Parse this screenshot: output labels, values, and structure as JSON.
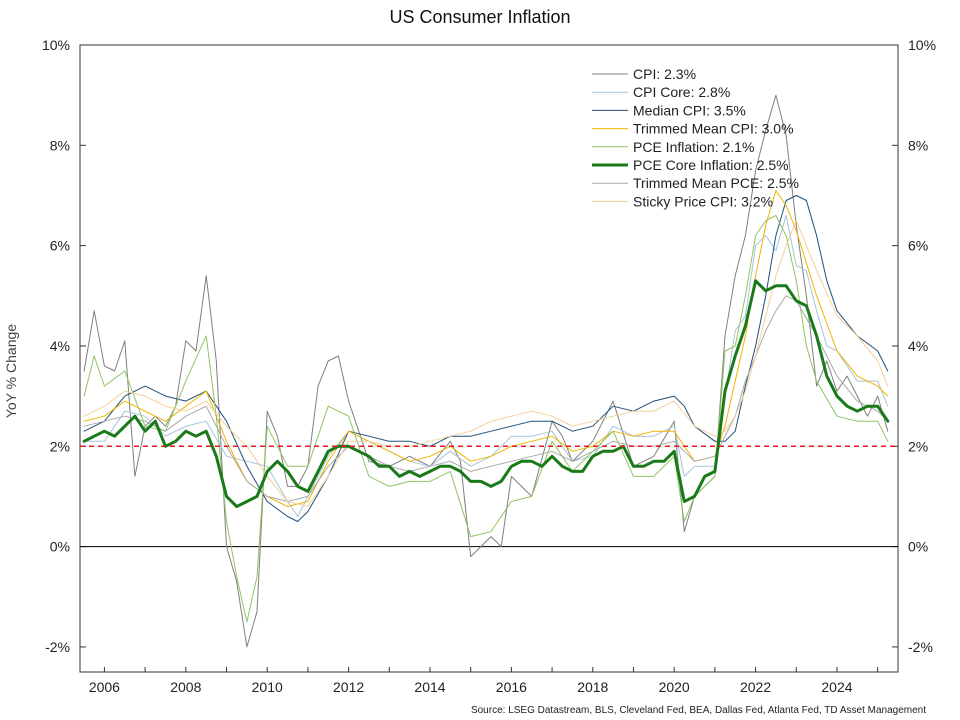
{
  "chart_data": {
    "type": "line",
    "title": "US Consumer Inflation",
    "ylabel": "YoY % Change",
    "xlabel": "",
    "source": "Source: LSEG Datastream, BLS, Cleveland Fed, BEA, Dallas Fed, Atlanta Fed, TD Asset Management",
    "ylim": [
      -2.5,
      10
    ],
    "xlim": [
      2005.4,
      2025.5
    ],
    "y_ticks": [
      -2,
      0,
      2,
      4,
      6,
      8,
      10
    ],
    "y_tick_labels": [
      "-2%",
      "0%",
      "2%",
      "4%",
      "6%",
      "8%",
      "10%"
    ],
    "x_ticks": [
      2006,
      2008,
      2010,
      2012,
      2014,
      2016,
      2018,
      2020,
      2022,
      2024
    ],
    "x_tick_labels": [
      "2006",
      "2008",
      "2010",
      "2012",
      "2014",
      "2016",
      "2018",
      "2020",
      "2022",
      "2024"
    ],
    "reference_line": {
      "value": 2,
      "style": "dashed",
      "color": "#e41a1c"
    },
    "zero_line": {
      "value": 0,
      "color": "#000000"
    },
    "grid": false,
    "legend_position": "top-right",
    "series": [
      {
        "name": "CPI: 2.3%",
        "color": "#7f7f7f",
        "width": 1,
        "x": [
          2005.5,
          2005.75,
          2006.0,
          2006.25,
          2006.5,
          2006.75,
          2007.0,
          2007.25,
          2007.5,
          2007.75,
          2008.0,
          2008.25,
          2008.5,
          2008.75,
          2009.0,
          2009.25,
          2009.5,
          2009.75,
          2010.0,
          2010.25,
          2010.5,
          2010.75,
          2011.0,
          2011.25,
          2011.5,
          2011.75,
          2012.0,
          2012.5,
          2013.0,
          2013.5,
          2014.0,
          2014.5,
          2014.75,
          2015.0,
          2015.25,
          2015.5,
          2015.75,
          2016.0,
          2016.5,
          2017.0,
          2017.25,
          2017.5,
          2018.0,
          2018.5,
          2019.0,
          2019.5,
          2020.0,
          2020.25,
          2020.5,
          2020.75,
          2021.0,
          2021.25,
          2021.5,
          2021.75,
          2022.0,
          2022.25,
          2022.5,
          2022.75,
          2023.0,
          2023.25,
          2023.5,
          2023.75,
          2024.0,
          2024.25,
          2024.5,
          2024.75,
          2025.0,
          2025.25
        ],
        "y": [
          3.5,
          4.7,
          3.6,
          3.5,
          4.1,
          1.4,
          2.4,
          2.6,
          2.4,
          2.8,
          4.1,
          3.9,
          5.4,
          3.7,
          0.0,
          -0.7,
          -2.0,
          -1.3,
          2.7,
          2.2,
          1.2,
          1.2,
          1.6,
          3.2,
          3.7,
          3.8,
          2.9,
          1.7,
          1.6,
          1.8,
          1.6,
          2.1,
          1.7,
          -0.2,
          0.0,
          0.2,
          0.0,
          1.4,
          1.0,
          2.5,
          2.2,
          1.7,
          2.1,
          2.9,
          1.6,
          1.8,
          2.5,
          0.3,
          1.0,
          1.2,
          1.4,
          4.2,
          5.4,
          6.2,
          7.5,
          8.3,
          9.0,
          8.2,
          6.4,
          5.0,
          3.2,
          3.7,
          3.1,
          3.4,
          3.0,
          2.6,
          3.0,
          2.3
        ]
      },
      {
        "name": "CPI Core: 2.8%",
        "color": "#a6c3d9",
        "width": 1,
        "x": [
          2005.5,
          2006.0,
          2006.5,
          2007.0,
          2007.5,
          2008.0,
          2008.5,
          2009.0,
          2009.5,
          2010.0,
          2010.5,
          2010.75,
          2011.0,
          2011.5,
          2012.0,
          2012.5,
          2013.0,
          2013.5,
          2014.0,
          2014.5,
          2015.0,
          2015.5,
          2016.0,
          2016.5,
          2017.0,
          2017.5,
          2018.0,
          2018.5,
          2019.0,
          2019.5,
          2020.0,
          2020.25,
          2020.5,
          2021.0,
          2021.25,
          2021.5,
          2021.75,
          2022.0,
          2022.25,
          2022.5,
          2022.75,
          2023.0,
          2023.25,
          2023.5,
          2023.75,
          2024.0,
          2024.5,
          2025.0,
          2025.25
        ],
        "y": [
          2.1,
          2.1,
          2.7,
          2.6,
          2.2,
          2.4,
          2.5,
          1.8,
          1.7,
          1.6,
          0.9,
          0.6,
          1.0,
          1.8,
          2.3,
          2.1,
          1.9,
          1.7,
          1.6,
          1.9,
          1.6,
          1.8,
          2.2,
          2.2,
          2.3,
          1.7,
          1.8,
          2.4,
          2.2,
          2.2,
          2.4,
          1.4,
          1.6,
          1.6,
          3.0,
          4.3,
          4.6,
          6.0,
          6.2,
          5.9,
          6.6,
          5.6,
          5.5,
          4.7,
          4.0,
          3.9,
          3.3,
          3.3,
          2.8
        ]
      },
      {
        "name": "Median CPI: 3.5%",
        "color": "#1f4e79",
        "width": 1,
        "x": [
          2005.5,
          2006.0,
          2006.5,
          2007.0,
          2007.5,
          2008.0,
          2008.5,
          2009.0,
          2009.5,
          2010.0,
          2010.5,
          2010.75,
          2011.0,
          2011.5,
          2012.0,
          2012.5,
          2013.0,
          2013.5,
          2014.0,
          2014.5,
          2015.0,
          2015.5,
          2016.0,
          2016.5,
          2017.0,
          2017.5,
          2018.0,
          2018.5,
          2019.0,
          2019.5,
          2020.0,
          2020.25,
          2020.5,
          2021.0,
          2021.25,
          2021.5,
          2021.75,
          2022.0,
          2022.25,
          2022.5,
          2022.75,
          2023.0,
          2023.25,
          2023.5,
          2023.75,
          2024.0,
          2024.5,
          2025.0,
          2025.25
        ],
        "y": [
          2.3,
          2.5,
          3.0,
          3.2,
          3.0,
          2.9,
          3.1,
          2.5,
          1.6,
          0.9,
          0.6,
          0.5,
          0.7,
          1.4,
          2.3,
          2.2,
          2.1,
          2.1,
          2.0,
          2.2,
          2.2,
          2.3,
          2.4,
          2.5,
          2.5,
          2.3,
          2.4,
          2.8,
          2.7,
          2.9,
          3.0,
          2.8,
          2.4,
          2.1,
          2.1,
          2.3,
          3.2,
          4.0,
          5.0,
          6.2,
          6.9,
          7.0,
          6.9,
          6.2,
          5.3,
          4.7,
          4.2,
          3.9,
          3.5
        ]
      },
      {
        "name": "Trimmed Mean CPI: 3.0%",
        "color": "#f0b400",
        "width": 1,
        "x": [
          2005.5,
          2006.0,
          2006.5,
          2007.0,
          2007.5,
          2008.0,
          2008.5,
          2009.0,
          2009.5,
          2010.0,
          2010.5,
          2011.0,
          2011.5,
          2012.0,
          2012.5,
          2013.0,
          2013.5,
          2014.0,
          2014.5,
          2015.0,
          2015.5,
          2016.0,
          2016.5,
          2017.0,
          2017.5,
          2018.0,
          2018.5,
          2019.0,
          2019.5,
          2020.0,
          2020.5,
          2021.0,
          2021.25,
          2021.5,
          2021.75,
          2022.0,
          2022.25,
          2022.5,
          2022.75,
          2023.0,
          2023.5,
          2024.0,
          2024.5,
          2025.0,
          2025.25
        ],
        "y": [
          2.5,
          2.6,
          2.9,
          2.7,
          2.5,
          2.8,
          3.1,
          2.1,
          1.3,
          1.0,
          0.8,
          0.9,
          1.7,
          2.3,
          2.1,
          1.9,
          1.7,
          1.8,
          2.0,
          1.7,
          1.8,
          2.0,
          2.1,
          2.2,
          1.9,
          2.0,
          2.3,
          2.2,
          2.3,
          2.3,
          1.7,
          1.8,
          2.4,
          3.3,
          4.2,
          5.4,
          6.4,
          7.1,
          6.8,
          6.3,
          5.0,
          3.9,
          3.4,
          3.2,
          3.0
        ]
      },
      {
        "name": "PCE Inflation: 2.1%",
        "color": "#8fc460",
        "width": 1,
        "x": [
          2005.5,
          2005.75,
          2006.0,
          2006.5,
          2007.0,
          2007.5,
          2008.0,
          2008.5,
          2008.75,
          2009.0,
          2009.25,
          2009.5,
          2009.75,
          2010.0,
          2010.5,
          2011.0,
          2011.5,
          2012.0,
          2012.5,
          2013.0,
          2013.5,
          2014.0,
          2014.5,
          2015.0,
          2015.5,
          2016.0,
          2016.5,
          2017.0,
          2017.5,
          2018.0,
          2018.5,
          2019.0,
          2019.5,
          2020.0,
          2020.25,
          2020.5,
          2021.0,
          2021.25,
          2021.5,
          2021.75,
          2022.0,
          2022.25,
          2022.5,
          2022.75,
          2023.0,
          2023.25,
          2023.5,
          2024.0,
          2024.5,
          2025.0,
          2025.25
        ],
        "y": [
          3.0,
          3.8,
          3.2,
          3.5,
          2.4,
          2.3,
          3.3,
          4.2,
          2.6,
          0.5,
          -0.6,
          -1.5,
          -0.6,
          2.4,
          1.6,
          1.6,
          2.8,
          2.6,
          1.4,
          1.2,
          1.3,
          1.3,
          1.5,
          0.2,
          0.3,
          0.9,
          1.0,
          2.1,
          1.5,
          1.9,
          2.3,
          1.4,
          1.4,
          1.8,
          0.5,
          1.0,
          1.4,
          3.9,
          4.0,
          5.0,
          6.2,
          6.5,
          6.6,
          6.2,
          5.3,
          4.0,
          3.3,
          2.6,
          2.5,
          2.5,
          2.1
        ]
      },
      {
        "name": "PCE Core Inflation: 2.5%",
        "color": "#1a7a1a",
        "width": 3,
        "x": [
          2005.5,
          2005.75,
          2006.0,
          2006.25,
          2006.5,
          2006.75,
          2007.0,
          2007.25,
          2007.5,
          2007.75,
          2008.0,
          2008.25,
          2008.5,
          2008.75,
          2009.0,
          2009.25,
          2009.5,
          2009.75,
          2010.0,
          2010.25,
          2010.5,
          2010.75,
          2011.0,
          2011.25,
          2011.5,
          2011.75,
          2012.0,
          2012.25,
          2012.5,
          2012.75,
          2013.0,
          2013.25,
          2013.5,
          2013.75,
          2014.0,
          2014.25,
          2014.5,
          2014.75,
          2015.0,
          2015.25,
          2015.5,
          2015.75,
          2016.0,
          2016.25,
          2016.5,
          2016.75,
          2017.0,
          2017.25,
          2017.5,
          2017.75,
          2018.0,
          2018.25,
          2018.5,
          2018.75,
          2019.0,
          2019.25,
          2019.5,
          2019.75,
          2020.0,
          2020.25,
          2020.5,
          2020.75,
          2021.0,
          2021.25,
          2021.5,
          2021.75,
          2022.0,
          2022.25,
          2022.5,
          2022.75,
          2023.0,
          2023.25,
          2023.5,
          2023.75,
          2024.0,
          2024.25,
          2024.5,
          2024.75,
          2025.0,
          2025.25
        ],
        "y": [
          2.1,
          2.2,
          2.3,
          2.2,
          2.4,
          2.6,
          2.3,
          2.5,
          2.0,
          2.1,
          2.3,
          2.2,
          2.3,
          1.8,
          1.0,
          0.8,
          0.9,
          1.0,
          1.5,
          1.7,
          1.5,
          1.2,
          1.1,
          1.5,
          1.9,
          2.0,
          2.0,
          1.9,
          1.8,
          1.6,
          1.6,
          1.4,
          1.5,
          1.4,
          1.5,
          1.6,
          1.6,
          1.5,
          1.3,
          1.3,
          1.2,
          1.3,
          1.6,
          1.7,
          1.7,
          1.6,
          1.8,
          1.6,
          1.5,
          1.5,
          1.8,
          1.9,
          1.9,
          2.0,
          1.6,
          1.6,
          1.7,
          1.7,
          1.9,
          0.9,
          1.0,
          1.4,
          1.5,
          3.1,
          3.8,
          4.4,
          5.3,
          5.1,
          5.2,
          5.2,
          4.9,
          4.8,
          4.2,
          3.4,
          3.0,
          2.8,
          2.7,
          2.8,
          2.8,
          2.5
        ]
      },
      {
        "name": "Trimmed Mean PCE: 2.5%",
        "color": "#a8a8a8",
        "width": 1,
        "x": [
          2005.5,
          2006.0,
          2006.5,
          2007.0,
          2007.5,
          2008.0,
          2008.5,
          2009.0,
          2009.5,
          2010.0,
          2010.5,
          2011.0,
          2011.5,
          2012.0,
          2012.5,
          2013.0,
          2013.5,
          2014.0,
          2014.5,
          2015.0,
          2015.5,
          2016.0,
          2016.5,
          2017.0,
          2017.5,
          2018.0,
          2018.5,
          2019.0,
          2019.5,
          2020.0,
          2020.5,
          2021.0,
          2021.25,
          2021.5,
          2021.75,
          2022.0,
          2022.25,
          2022.5,
          2022.75,
          2023.0,
          2023.5,
          2024.0,
          2024.5,
          2025.0,
          2025.25
        ],
        "y": [
          2.4,
          2.5,
          2.6,
          2.5,
          2.3,
          2.6,
          2.8,
          2.0,
          1.3,
          1.0,
          0.9,
          1.0,
          1.6,
          2.0,
          1.8,
          1.6,
          1.5,
          1.6,
          1.7,
          1.5,
          1.6,
          1.7,
          1.8,
          1.9,
          1.7,
          1.9,
          2.1,
          2.0,
          2.0,
          2.1,
          1.7,
          1.8,
          2.2,
          2.6,
          3.3,
          3.8,
          4.3,
          4.7,
          5.0,
          4.9,
          4.2,
          3.4,
          2.9,
          2.7,
          2.5
        ]
      },
      {
        "name": "Sticky Price CPI: 3.2%",
        "color": "#f5cf99",
        "width": 1,
        "x": [
          2005.5,
          2006.0,
          2006.5,
          2007.0,
          2007.5,
          2008.0,
          2008.5,
          2009.0,
          2009.5,
          2010.0,
          2010.5,
          2011.0,
          2011.5,
          2012.0,
          2012.5,
          2013.0,
          2013.5,
          2014.0,
          2014.5,
          2015.0,
          2015.5,
          2016.0,
          2016.5,
          2017.0,
          2017.5,
          2018.0,
          2018.5,
          2019.0,
          2019.5,
          2020.0,
          2020.5,
          2021.0,
          2021.25,
          2021.5,
          2021.75,
          2022.0,
          2022.25,
          2022.5,
          2022.75,
          2023.0,
          2023.5,
          2024.0,
          2024.5,
          2025.0,
          2025.25
        ],
        "y": [
          2.6,
          2.8,
          3.1,
          3.0,
          2.8,
          2.7,
          2.9,
          2.4,
          2.0,
          1.4,
          0.9,
          0.8,
          1.4,
          2.1,
          2.1,
          2.0,
          2.0,
          2.1,
          2.2,
          2.3,
          2.5,
          2.6,
          2.7,
          2.6,
          2.4,
          2.5,
          2.6,
          2.7,
          2.7,
          2.9,
          2.4,
          2.2,
          2.3,
          2.6,
          3.1,
          3.8,
          4.6,
          5.4,
          6.0,
          6.5,
          5.5,
          4.6,
          4.2,
          3.7,
          3.2
        ]
      }
    ]
  }
}
